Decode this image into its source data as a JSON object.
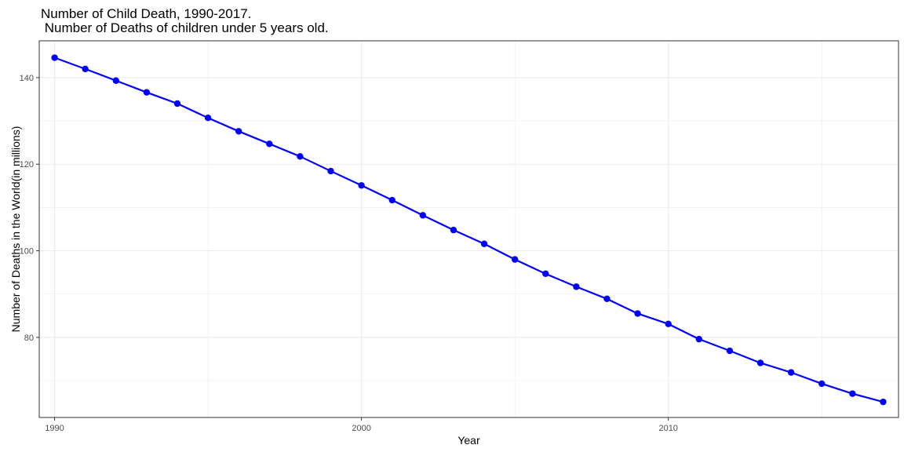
{
  "chart_data": {
    "type": "line",
    "title": "Number of Child Death, 1990-2017.",
    "subtitle": " Number of Deaths of children under 5 years old.",
    "xlabel": "Year",
    "ylabel": "Number of Deaths in the World(in millions)",
    "x_ticks": [
      1990,
      2000,
      2010
    ],
    "y_ticks": [
      80,
      100,
      120,
      140
    ],
    "xlim": [
      1989.5,
      2017.5
    ],
    "ylim": [
      61.5,
      148.5
    ],
    "grid": true,
    "colors": {
      "series": "#0000ff",
      "grid": "#ebebeb",
      "panel_border": "#333333"
    },
    "series": [
      {
        "x": [
          1990,
          1991,
          1992,
          1993,
          1994,
          1995,
          1996,
          1997,
          1998,
          1999,
          2000,
          2001,
          2002,
          2003,
          2004,
          2005,
          2006,
          2007,
          2008,
          2009,
          2010,
          2011,
          2012,
          2013,
          2014,
          2015,
          2016,
          2017
        ],
        "values": [
          144.6,
          142.0,
          139.3,
          136.6,
          134.0,
          130.7,
          127.6,
          124.7,
          121.8,
          118.4,
          115.1,
          111.7,
          108.2,
          104.8,
          101.6,
          98.0,
          94.7,
          91.7,
          88.9,
          85.5,
          83.1,
          79.6,
          76.9,
          74.1,
          71.9,
          69.3,
          67.0,
          65.1
        ]
      }
    ]
  }
}
